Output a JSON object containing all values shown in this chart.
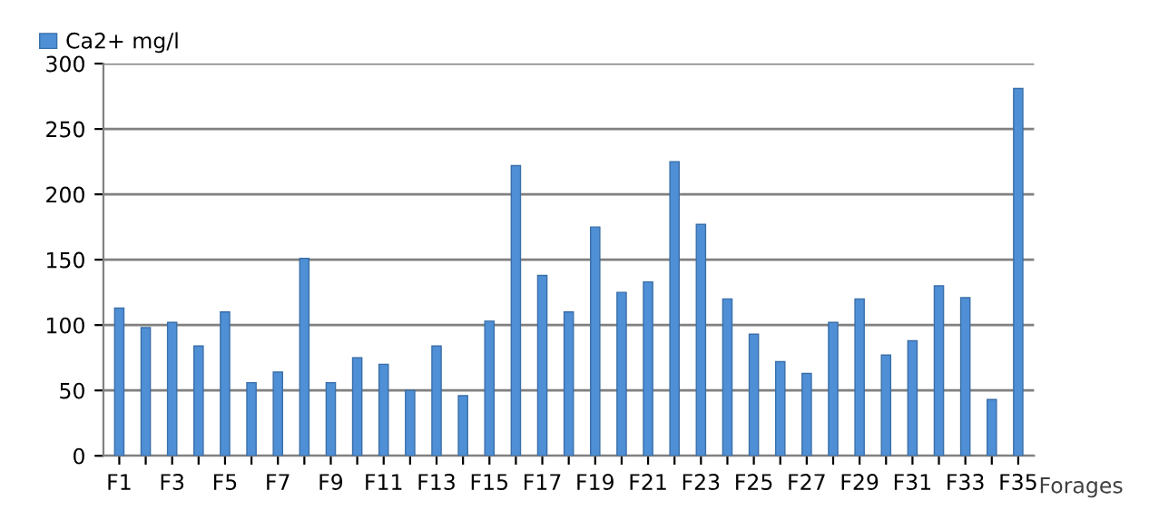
{
  "chart_data": {
    "type": "bar",
    "xlabel": "Forages",
    "categories": [
      "F1",
      null,
      "F3",
      null,
      "F5",
      null,
      "F7",
      null,
      "F9",
      null,
      "F11",
      null,
      "F13",
      null,
      "F15",
      null,
      "F17",
      null,
      "F19",
      null,
      "F21",
      null,
      "F23",
      null,
      "F25",
      null,
      "F27",
      null,
      "F29",
      null,
      "F31",
      null,
      "F33",
      null,
      "F35"
    ],
    "series": [
      {
        "name": "Ca2+ mg/l",
        "color": "#4f8fd6",
        "values": [
          113,
          98,
          102,
          84,
          110,
          56,
          64,
          151,
          56,
          75,
          70,
          50,
          84,
          46,
          103,
          222,
          138,
          110,
          175,
          125,
          133,
          225,
          177,
          120,
          93,
          72,
          63,
          102,
          120,
          77,
          88,
          130,
          121,
          43,
          281
        ]
      }
    ],
    "ylim": [
      0,
      300
    ],
    "yticks": [
      0,
      50,
      100,
      150,
      200,
      250,
      300
    ],
    "grid": "y",
    "legend": "top left"
  }
}
